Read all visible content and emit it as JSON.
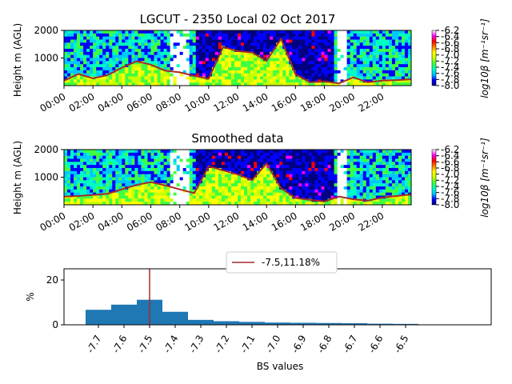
{
  "chart_data": [
    {
      "type": "heatmap",
      "title": "LGCUT - 2350 Local 02 Oct 2017",
      "ylabel": "Height m (AGL)",
      "yticks": [
        "1000",
        "2000"
      ],
      "ylim": [
        0,
        2000
      ],
      "xticks": [
        "00:00",
        "02:00",
        "04:00",
        "06:00",
        "08:00",
        "10:00",
        "12:00",
        "14:00",
        "16:00",
        "18:00",
        "20:00",
        "22:00"
      ],
      "colorbar_label": "log10β [m⁻¹sr⁻¹]",
      "colorbar_ticks": [
        "-6.2",
        "-6.4",
        "-6.6",
        "-6.8",
        "-7.0",
        "-7.2",
        "-7.4",
        "-7.6",
        "-7.8",
        "-8.0"
      ],
      "colormap": [
        "#000080",
        "#0000ff",
        "#00c8ff",
        "#00ffc0",
        "#40ff40",
        "#c8ff00",
        "#ffff00",
        "#ff8000",
        "#ff0000",
        "#ff00ff",
        "#ffffff"
      ],
      "boundary_layer_color": "#a52a2a",
      "boundary_layer_height_m": [
        180,
        420,
        260,
        380,
        650,
        880,
        760,
        540,
        480,
        350,
        250,
        1400,
        1250,
        1200,
        900,
        1700,
        420,
        120,
        150,
        80,
        300,
        120,
        180,
        200,
        230
      ]
    },
    {
      "type": "heatmap",
      "title": "Smoothed data",
      "ylabel": "Height m (AGL)",
      "yticks": [
        "1000",
        "2000"
      ],
      "ylim": [
        0,
        2000
      ],
      "xticks": [
        "00:00",
        "02:00",
        "04:00",
        "06:00",
        "08:00",
        "10:00",
        "12:00",
        "14:00",
        "16:00",
        "18:00",
        "20:00",
        "22:00"
      ],
      "colorbar_label": "log10β [m⁻¹sr⁻¹]",
      "colorbar_ticks": [
        "-6.2",
        "-6.4",
        "-6.6",
        "-6.8",
        "-7.0",
        "-7.2",
        "-7.4",
        "-7.6",
        "-7.8",
        "-8.0"
      ],
      "colormap": [
        "#000080",
        "#0000ff",
        "#00c8ff",
        "#00ffc0",
        "#40ff40",
        "#c8ff00",
        "#ffff00",
        "#ff8000",
        "#ff0000",
        "#ff00ff",
        "#ffffff"
      ],
      "boundary_layer_color": "#a52a2a",
      "boundary_layer_height_m": [
        300,
        320,
        360,
        400,
        560,
        720,
        820,
        700,
        560,
        420,
        1400,
        1250,
        1100,
        900,
        1500,
        600,
        250,
        180,
        120,
        300,
        200,
        150,
        260,
        320,
        380
      ]
    },
    {
      "type": "bar",
      "xlabel": "BS values",
      "ylabel": "%",
      "categories": [
        "-7.7",
        "-7.6",
        "-7.5",
        "-7.4",
        "-7.3",
        "-7.2",
        "-7.1",
        "-7.0",
        "-6.9",
        "-6.8",
        "-6.7",
        "-6.6",
        "-6.5"
      ],
      "tick_labels_shown": [
        "-7.7",
        "-7.6",
        "-7.5",
        "-7.4",
        "-7.3",
        "-7.2",
        "-7.1",
        "-7.0",
        "-6.9",
        "-6.8",
        "-6.7",
        "-6.6",
        "-6.5"
      ],
      "values": [
        6.7,
        9.0,
        11.18,
        5.8,
        2.2,
        1.6,
        1.3,
        1.0,
        0.9,
        0.8,
        0.7,
        0.5,
        0.4
      ],
      "ylim": [
        0,
        25
      ],
      "yticks": [
        "0",
        "20"
      ],
      "bar_color": "#1f77b4",
      "marker_line": {
        "x": -7.5,
        "color": "#a52a2a"
      },
      "legend": {
        "entries": [
          "-7.5,11.18%"
        ],
        "placement": "upper-center"
      }
    }
  ]
}
